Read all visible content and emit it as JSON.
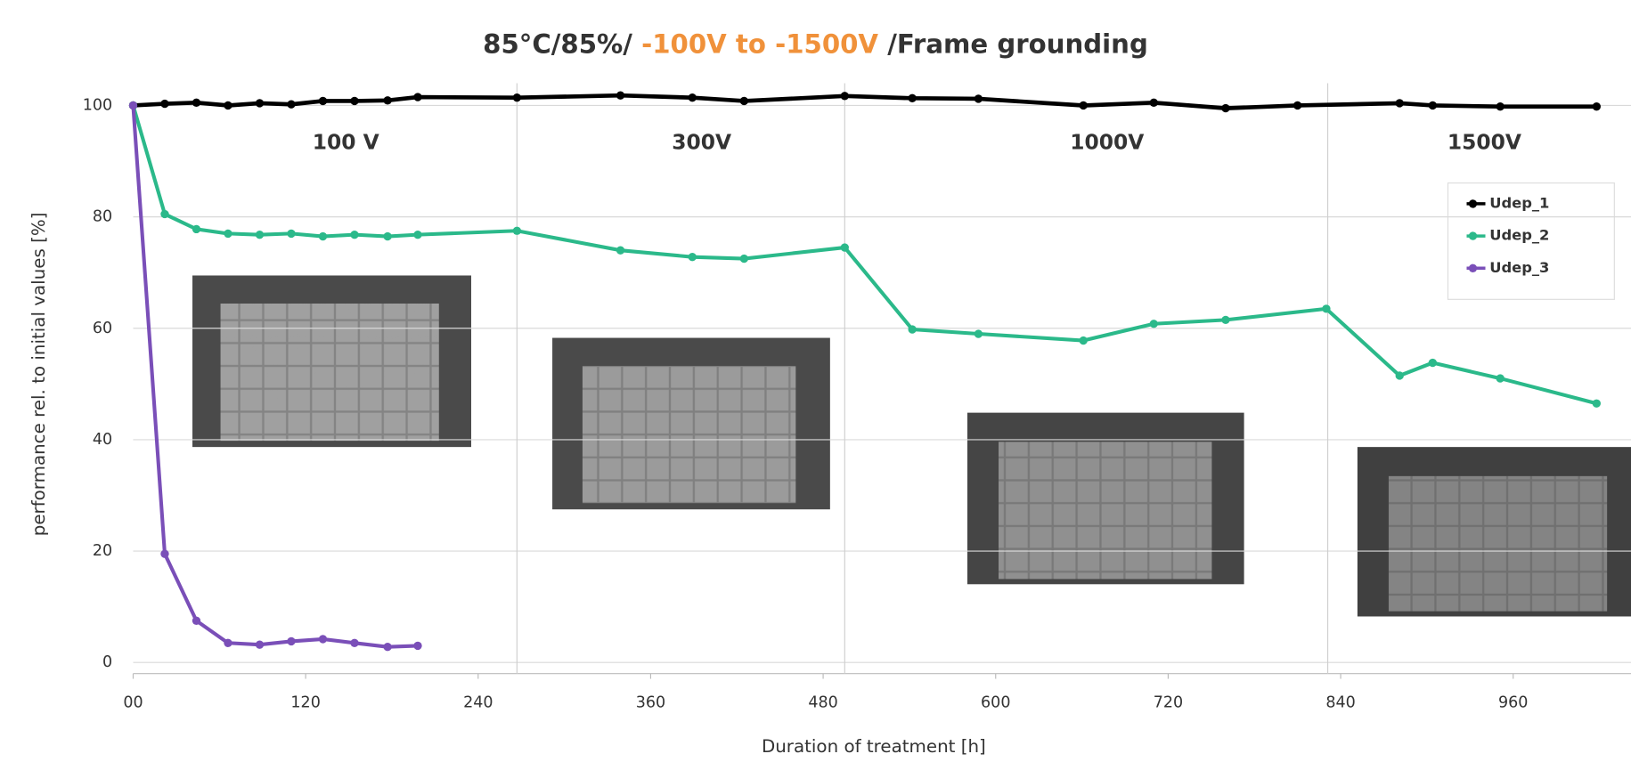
{
  "chart_data": {
    "type": "line",
    "title_parts": [
      {
        "text": "85°C/85%/ ",
        "color": "#333333"
      },
      {
        "text": "-100V to -1500V",
        "color": "#f0913a"
      },
      {
        "text": " /Frame grounding",
        "color": "#333333"
      }
    ],
    "x_label": "Duration of treatment  [h]",
    "y_label": "performance rel. to initial values [%]",
    "xlim": [
      0,
      1020
    ],
    "ylim": [
      -2,
      104
    ],
    "xticks": [
      {
        "value": 0,
        "label": "00"
      },
      120,
      240,
      360,
      480,
      600,
      720,
      840,
      960
    ],
    "yticks": [
      0,
      20,
      40,
      60,
      80,
      100
    ],
    "grid": true,
    "phase_boundaries": [
      267,
      495,
      831
    ],
    "phases": [
      "100 V",
      "300V",
      "1000V",
      "1500V"
    ],
    "legend": "upper right",
    "series": [
      {
        "name": "Udep_1",
        "color": "#000000",
        "x": [
          0,
          22,
          44,
          66,
          88,
          110,
          132,
          154,
          177,
          198,
          267,
          339,
          389,
          425,
          495,
          542,
          588,
          661,
          710,
          760,
          810,
          881,
          904,
          951,
          1018
        ],
        "values": [
          100,
          100.3,
          100.5,
          100,
          100.4,
          100.2,
          100.8,
          100.8,
          100.9,
          101.5,
          101.4,
          101.8,
          101.4,
          100.8,
          101.7,
          101.3,
          101.2,
          100,
          100.5,
          99.5,
          100,
          100.4,
          100,
          99.8,
          99.8
        ]
      },
      {
        "name": "Udep_2",
        "color": "#2bb98a",
        "x": [
          0,
          22,
          44,
          66,
          88,
          110,
          132,
          154,
          177,
          198,
          267,
          339,
          389,
          425,
          495,
          542,
          588,
          661,
          710,
          760,
          830,
          881,
          904,
          951,
          1018
        ],
        "values": [
          100,
          80.5,
          77.8,
          77,
          76.8,
          77,
          76.5,
          76.8,
          76.5,
          76.8,
          77.5,
          74,
          72.8,
          72.5,
          74.5,
          59.8,
          59,
          57.8,
          60.8,
          61.5,
          63.5,
          51.5,
          53.8,
          51,
          46.5
        ]
      },
      {
        "name": "Udep_3",
        "color": "#7a4fb8",
        "x": [
          0,
          22,
          44,
          66,
          88,
          110,
          132,
          154,
          177,
          198
        ],
        "values": [
          100,
          19.5,
          7.5,
          3.5,
          3.2,
          3.8,
          4.2,
          3.5,
          2.8,
          3
        ]
      }
    ]
  }
}
